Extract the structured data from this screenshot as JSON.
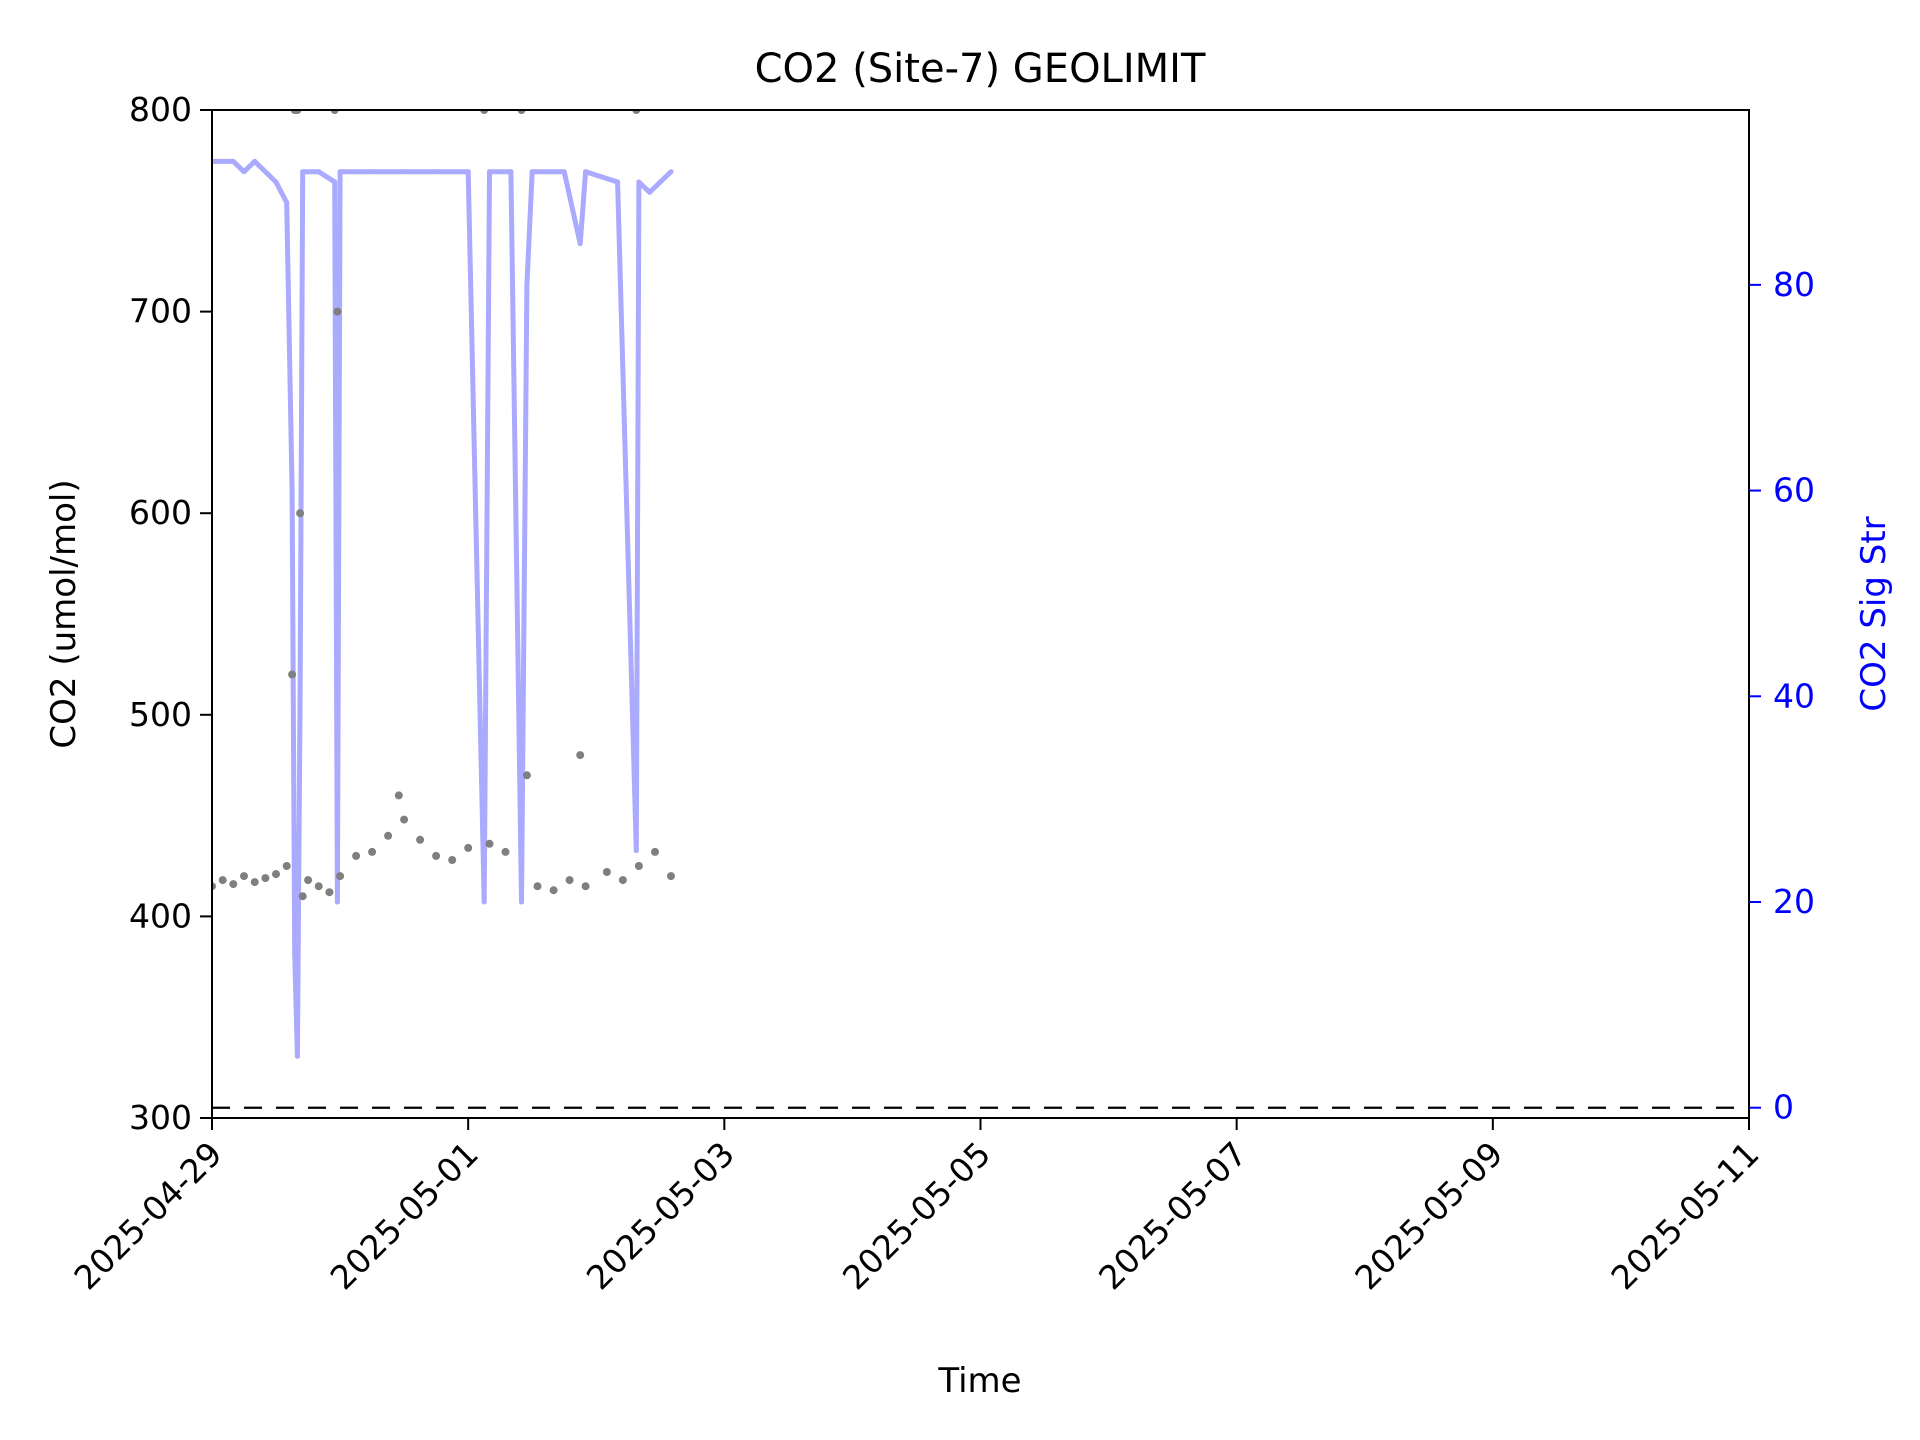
{
  "chart_data": {
    "type": "scatter",
    "title": "CO2 (Site-7) GEOLIMIT",
    "xlabel": "Time",
    "ylabel_left": "CO2 (umol/mol)",
    "ylabel_right": "CO2 Sig Str",
    "x_range": [
      "2025-04-29",
      "2025-05-11"
    ],
    "y_left_range": [
      300,
      800
    ],
    "y_right_range": [
      -1,
      97
    ],
    "x_ticks": [
      "2025-04-29",
      "2025-05-01",
      "2025-05-03",
      "2025-05-05",
      "2025-05-07",
      "2025-05-09",
      "2025-05-11"
    ],
    "y_left_ticks": [
      "300",
      "400",
      "500",
      "600",
      "700",
      "800"
    ],
    "y_right_ticks": [
      "0",
      "20",
      "40",
      "60",
      "80"
    ],
    "reference_line": {
      "axis": "right",
      "value": 0,
      "style": "dashed",
      "color": "#000000"
    },
    "grid": false,
    "legend": "none",
    "colors": {
      "co2": "#7f7f7f",
      "sig_str": "#aaaaff",
      "right_axis": "#0000ff"
    },
    "series": [
      {
        "axis": "left",
        "type": "scatter",
        "color": "#7f7f7f",
        "points": [
          [
            "2025-04-29 00:00",
            415
          ],
          [
            "2025-04-29 02:00",
            418
          ],
          [
            "2025-04-29 04:00",
            416
          ],
          [
            "2025-04-29 06:00",
            420
          ],
          [
            "2025-04-29 08:00",
            417
          ],
          [
            "2025-04-29 10:00",
            419
          ],
          [
            "2025-04-29 12:00",
            421
          ],
          [
            "2025-04-29 14:00",
            425
          ],
          [
            "2025-04-29 15:00",
            520
          ],
          [
            "2025-04-29 15:30",
            800
          ],
          [
            "2025-04-29 16:00",
            800
          ],
          [
            "2025-04-29 16:30",
            600
          ],
          [
            "2025-04-29 17:00",
            410
          ],
          [
            "2025-04-29 18:00",
            418
          ],
          [
            "2025-04-29 20:00",
            415
          ],
          [
            "2025-04-29 22:00",
            412
          ],
          [
            "2025-04-29 23:00",
            800
          ],
          [
            "2025-04-29 23:30",
            700
          ],
          [
            "2025-04-30 00:00",
            420
          ],
          [
            "2025-04-30 03:00",
            430
          ],
          [
            "2025-04-30 06:00",
            432
          ],
          [
            "2025-04-30 09:00",
            440
          ],
          [
            "2025-04-30 11:00",
            460
          ],
          [
            "2025-04-30 12:00",
            448
          ],
          [
            "2025-04-30 15:00",
            438
          ],
          [
            "2025-04-30 18:00",
            430
          ],
          [
            "2025-04-30 21:00",
            428
          ],
          [
            "2025-05-01 00:00",
            434
          ],
          [
            "2025-05-01 03:00",
            800
          ],
          [
            "2025-05-01 04:00",
            436
          ],
          [
            "2025-05-01 07:00",
            432
          ],
          [
            "2025-05-01 10:00",
            800
          ],
          [
            "2025-05-01 11:00",
            470
          ],
          [
            "2025-05-01 13:00",
            415
          ],
          [
            "2025-05-01 16:00",
            413
          ],
          [
            "2025-05-01 19:00",
            418
          ],
          [
            "2025-05-01 21:00",
            480
          ],
          [
            "2025-05-01 22:00",
            415
          ],
          [
            "2025-05-02 02:00",
            422
          ],
          [
            "2025-05-02 05:00",
            418
          ],
          [
            "2025-05-02 07:30",
            800
          ],
          [
            "2025-05-02 08:00",
            425
          ],
          [
            "2025-05-02 11:00",
            432
          ],
          [
            "2025-05-02 14:00",
            420
          ]
        ]
      },
      {
        "axis": "right",
        "type": "line",
        "color": "#aaaaff",
        "points": [
          [
            "2025-04-29 00:00",
            92
          ],
          [
            "2025-04-29 04:00",
            92
          ],
          [
            "2025-04-29 06:00",
            91
          ],
          [
            "2025-04-29 08:00",
            92
          ],
          [
            "2025-04-29 12:00",
            90
          ],
          [
            "2025-04-29 14:00",
            88
          ],
          [
            "2025-04-29 15:00",
            60
          ],
          [
            "2025-04-29 15:30",
            15
          ],
          [
            "2025-04-29 16:00",
            5
          ],
          [
            "2025-04-29 16:30",
            40
          ],
          [
            "2025-04-29 17:00",
            91
          ],
          [
            "2025-04-29 20:00",
            91
          ],
          [
            "2025-04-29 23:00",
            90
          ],
          [
            "2025-04-29 23:30",
            20
          ],
          [
            "2025-04-30 00:00",
            91
          ],
          [
            "2025-04-30 06:00",
            91
          ],
          [
            "2025-04-30 12:00",
            91
          ],
          [
            "2025-04-30 18:00",
            91
          ],
          [
            "2025-05-01 00:00",
            91
          ],
          [
            "2025-05-01 03:00",
            20
          ],
          [
            "2025-05-01 04:00",
            91
          ],
          [
            "2025-05-01 08:00",
            91
          ],
          [
            "2025-05-01 10:00",
            20
          ],
          [
            "2025-05-01 11:00",
            80
          ],
          [
            "2025-05-01 12:00",
            91
          ],
          [
            "2025-05-01 18:00",
            91
          ],
          [
            "2025-05-01 21:00",
            84
          ],
          [
            "2025-05-01 22:00",
            91
          ],
          [
            "2025-05-02 04:00",
            90
          ],
          [
            "2025-05-02 07:30",
            25
          ],
          [
            "2025-05-02 08:00",
            90
          ],
          [
            "2025-05-02 10:00",
            89
          ],
          [
            "2025-05-02 12:00",
            90
          ],
          [
            "2025-05-02 14:00",
            91
          ]
        ]
      }
    ]
  }
}
